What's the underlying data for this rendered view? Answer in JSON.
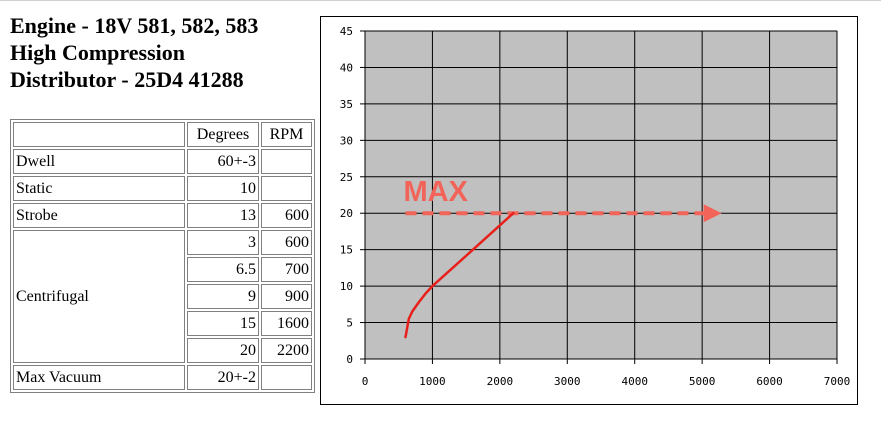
{
  "header": {
    "line1": "Engine - 18V 581, 582, 583",
    "line2": "High Compression",
    "line3": "Distributor - 25D4 41288"
  },
  "spec_table": {
    "columns": [
      "",
      "Degrees",
      "RPM"
    ],
    "rows": [
      {
        "name": "Dwell",
        "degrees": "60+-3",
        "rpm": ""
      },
      {
        "name": "Static",
        "degrees": "10",
        "rpm": ""
      },
      {
        "name": "Strobe",
        "degrees": "13",
        "rpm": "600"
      },
      {
        "name": "Centrifugal",
        "degrees": "3",
        "rpm": "600"
      },
      {
        "name": "",
        "degrees": "6.5",
        "rpm": "700"
      },
      {
        "name": "",
        "degrees": "9",
        "rpm": "900"
      },
      {
        "name": "",
        "degrees": "15",
        "rpm": "1600"
      },
      {
        "name": "",
        "degrees": "20",
        "rpm": "2200"
      },
      {
        "name": "Max Vacuum",
        "degrees": "20+-2",
        "rpm": ""
      }
    ]
  },
  "chart_data": {
    "type": "line",
    "title": "",
    "xlabel": "",
    "ylabel": "",
    "xlim": [
      0,
      7000
    ],
    "ylim": [
      0,
      45
    ],
    "x_ticks": [
      "0",
      "1000",
      "2000",
      "3000",
      "4000",
      "5000",
      "6000",
      "7000"
    ],
    "y_ticks": [
      "0",
      "5",
      "10",
      "15",
      "20",
      "25",
      "30",
      "35",
      "40",
      "45"
    ],
    "grid": true,
    "plot_background": "#c0c0c0",
    "series": [
      {
        "color": "#e8201c",
        "x": [
          600,
          650,
          700,
          800,
          900,
          1000,
          1600,
          2200
        ],
        "y": [
          3,
          5.5,
          6.5,
          7.8,
          9,
          10,
          15,
          20
        ]
      }
    ],
    "annotations": [
      {
        "text": "MAX",
        "color": "#f26459",
        "arrow": {
          "from": [
            600,
            20
          ],
          "to": [
            5200,
            20
          ],
          "style": "dashed"
        }
      }
    ]
  }
}
